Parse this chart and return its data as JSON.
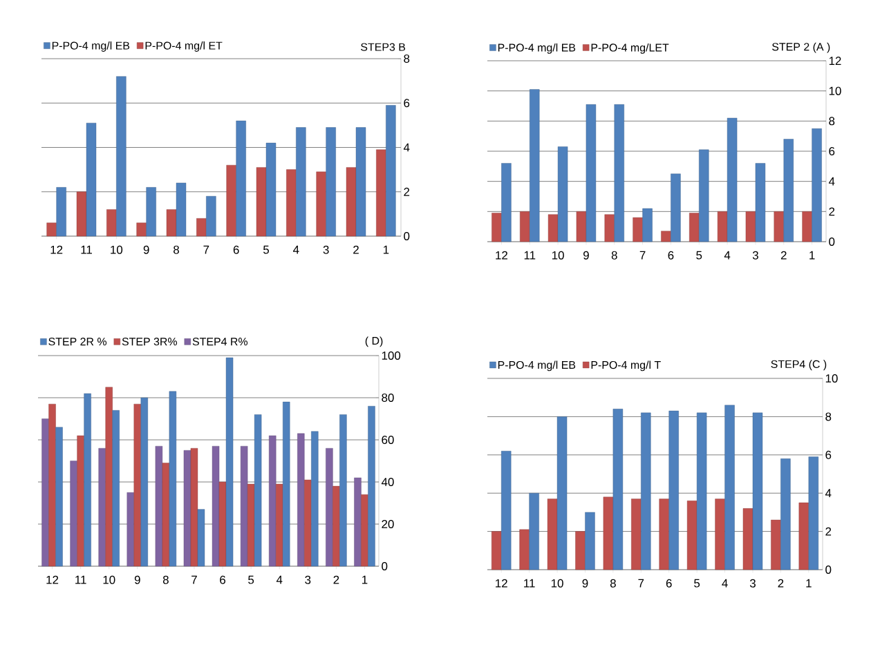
{
  "chart_data": [
    {
      "type": "bar",
      "title": "STEP3   B",
      "categories": [
        "12",
        "11",
        "10",
        "9",
        "8",
        "7",
        "6",
        "5",
        "4",
        "3",
        "2",
        "1"
      ],
      "series": [
        {
          "name": "P-PO-4 mg/l EB",
          "color": "#4f81bd",
          "values": [
            2.2,
            5.1,
            7.2,
            2.2,
            2.4,
            1.8,
            5.2,
            4.2,
            4.9,
            4.9,
            4.9,
            5.9
          ]
        },
        {
          "name": "P-PO-4 mg/l ET",
          "color": "#c0504d",
          "values": [
            0.6,
            2.0,
            1.2,
            0.6,
            1.2,
            0.8,
            3.2,
            3.1,
            3.0,
            2.9,
            3.1,
            3.9
          ]
        }
      ],
      "ylim": [
        0,
        8
      ],
      "yticks": [
        0,
        2,
        4,
        6,
        8
      ],
      "grid": "y",
      "legend": "top"
    },
    {
      "type": "bar",
      "title": "STEP 2  (A )",
      "categories": [
        "12",
        "11",
        "10",
        "9",
        "8",
        "7",
        "6",
        "5",
        "4",
        "3",
        "2",
        "1"
      ],
      "series": [
        {
          "name": "P-PO-4 mg/l  EB",
          "color": "#4f81bd",
          "values": [
            5.2,
            10.1,
            6.3,
            9.1,
            9.1,
            2.2,
            4.5,
            6.1,
            8.2,
            5.2,
            6.8,
            7.5
          ]
        },
        {
          "name": "P-PO-4 mg/LET",
          "color": "#c0504d",
          "values": [
            1.9,
            2.0,
            1.8,
            2.0,
            1.8,
            1.6,
            0.7,
            1.9,
            2.0,
            2.0,
            2.0,
            2.0
          ]
        }
      ],
      "ylim": [
        0,
        12
      ],
      "yticks": [
        0,
        2,
        4,
        6,
        8,
        10,
        12
      ],
      "grid": "y",
      "legend": "top"
    },
    {
      "type": "bar",
      "title": "( D)",
      "categories": [
        "12",
        "11",
        "10",
        "9",
        "8",
        "7",
        "6",
        "5",
        "4",
        "3",
        "2",
        "1"
      ],
      "series": [
        {
          "name": "STEP 2R %",
          "color": "#4f81bd",
          "values": [
            66,
            82,
            74,
            80,
            83,
            27,
            99,
            72,
            78,
            64,
            72,
            76
          ]
        },
        {
          "name": "STEP 3R%",
          "color": "#c0504d",
          "values": [
            77,
            62,
            85,
            77,
            49,
            56,
            40,
            39,
            39,
            41,
            38,
            34
          ]
        },
        {
          "name": "STEP4 R%",
          "color": "#8064a2",
          "values": [
            70,
            50,
            56,
            35,
            57,
            55,
            57,
            57,
            62,
            63,
            56,
            42
          ]
        }
      ],
      "ylim": [
        0,
        100
      ],
      "yticks": [
        0,
        20,
        40,
        60,
        80,
        100
      ],
      "grid": "y",
      "legend": "top"
    },
    {
      "type": "bar",
      "title": "STEP4    (C )",
      "categories": [
        "12",
        "11",
        "10",
        "9",
        "8",
        "7",
        "6",
        "5",
        "4",
        "3",
        "2",
        "1"
      ],
      "series": [
        {
          "name": "P-PO-4  mg/l EB",
          "color": "#4f81bd",
          "values": [
            6.2,
            4.0,
            8.0,
            3.0,
            8.4,
            8.2,
            8.3,
            8.2,
            8.6,
            8.2,
            5.8,
            5.9
          ]
        },
        {
          "name": "P-PO-4  mg/l T",
          "color": "#c0504d",
          "values": [
            2.0,
            2.1,
            3.7,
            2.0,
            3.8,
            3.7,
            3.7,
            3.6,
            3.7,
            3.2,
            2.6,
            3.5
          ]
        }
      ],
      "ylim": [
        0,
        10
      ],
      "yticks": [
        0,
        2,
        4,
        6,
        8,
        10
      ],
      "grid": "y",
      "legend": "top"
    }
  ]
}
